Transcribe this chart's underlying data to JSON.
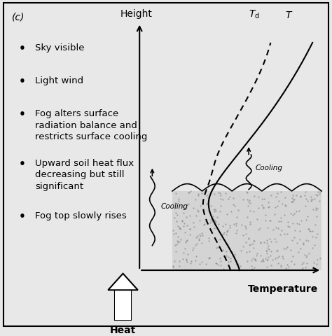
{
  "panel_label": "(c)",
  "background_color": "#e8e8e8",
  "plot_bg_color": "#f0f0f0",
  "border_color": "#000000",
  "bullet_points": [
    "Sky visible",
    "Light wind",
    "Fog alters surface\nradiation balance and\nrestricts surface cooling",
    "Upward soil heat flux\ndecreasing but still\nsignificant",
    "Fog top slowly rises"
  ],
  "axis_xlabel": "Temperature",
  "axis_ylabel": "Height",
  "label_Td": "$T_\\mathrm{d}$",
  "label_T": "$T$",
  "label_cooling_left": "Cooling",
  "label_cooling_right": "Cooling",
  "label_heat": "Heat",
  "font_size_labels": 9,
  "font_size_axis": 10,
  "font_size_panel": 10,
  "font_size_bullets": 9.5
}
